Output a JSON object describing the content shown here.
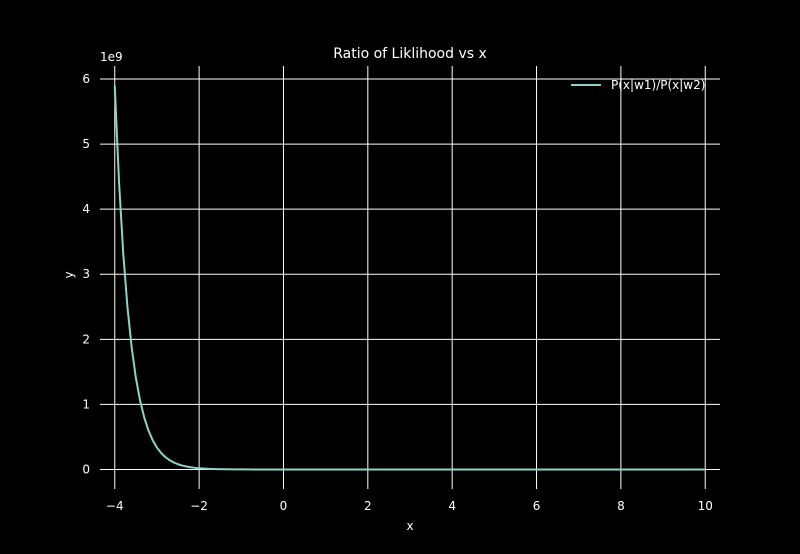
{
  "chart_data": {
    "type": "line",
    "title": "Ratio of Liklihood vs x",
    "xlabel": "x",
    "ylabel": "y",
    "y_scale_label": "1e9",
    "xlim": [
      -4.35,
      10.35
    ],
    "ylim": [
      -0.3,
      6.2
    ],
    "y_multiplier": 1000000000,
    "x_ticks": [
      -4,
      -2,
      0,
      2,
      4,
      6,
      8,
      10
    ],
    "x_tick_labels": [
      "−4",
      "−2",
      "0",
      "2",
      "4",
      "6",
      "8",
      "10"
    ],
    "y_ticks": [
      0,
      1,
      2,
      3,
      4,
      5,
      6
    ],
    "y_tick_labels": [
      "0",
      "1",
      "2",
      "3",
      "4",
      "5",
      "6"
    ],
    "grid": true,
    "legend_position": "top-right",
    "colors": {
      "background": "#000000",
      "foreground": "#ffffff",
      "grid": "#ffffff",
      "series": "#8dd3c7"
    },
    "series": [
      {
        "name": "P(x|w1)/P(x|w2)",
        "x": [
          -4.0,
          -3.9,
          -3.8,
          -3.7,
          -3.6,
          -3.5,
          -3.4,
          -3.3,
          -3.2,
          -3.1,
          -3.0,
          -2.9,
          -2.8,
          -2.7,
          -2.6,
          -2.5,
          -2.4,
          -2.3,
          -2.2,
          -2.1,
          -2.0,
          -1.8,
          -1.6,
          -1.4,
          -1.2,
          -1.0,
          -0.5,
          0.0,
          2.0,
          4.0,
          6.0,
          8.0,
          10.0
        ],
        "y": [
          5.9,
          4.43,
          3.33,
          2.5,
          1.88,
          1.41,
          1.06,
          0.795,
          0.597,
          0.448,
          0.337,
          0.253,
          0.19,
          0.143,
          0.107,
          0.0805,
          0.0605,
          0.0454,
          0.0341,
          0.0256,
          0.0193,
          0.0109,
          0.0061,
          0.0035,
          0.002,
          0.0011,
          0.0003,
          0.0001,
          0.0,
          0.0,
          0.0,
          0.0,
          0.0
        ]
      }
    ]
  }
}
